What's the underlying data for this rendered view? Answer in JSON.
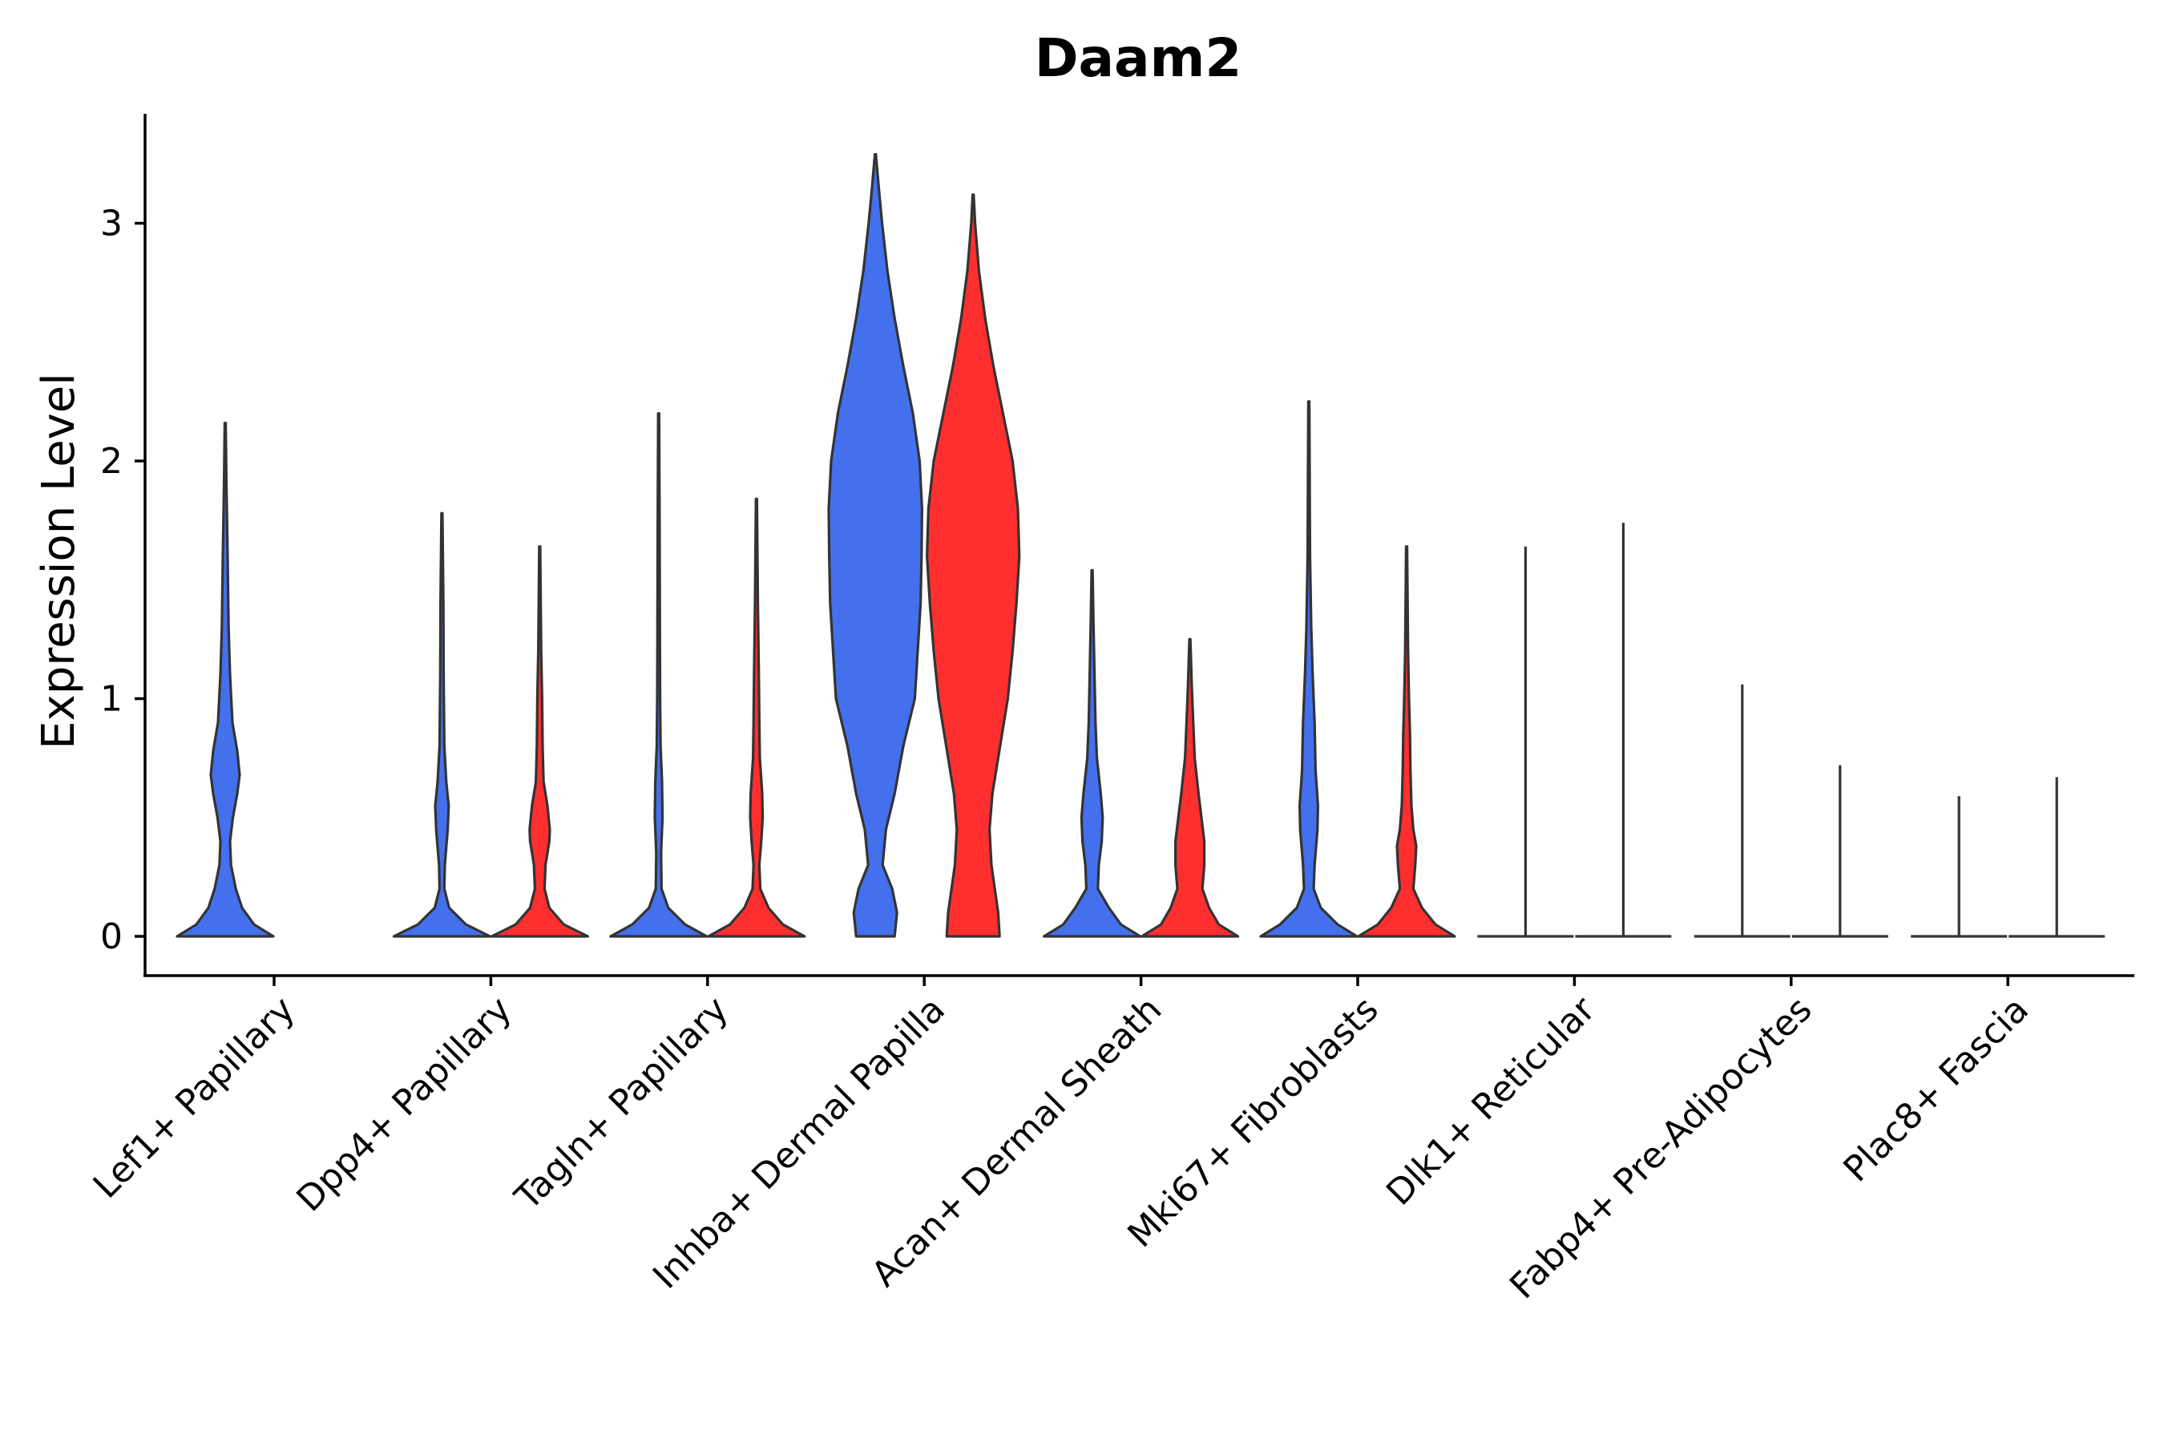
{
  "chart_data": {
    "type": "violin",
    "title": "Daam2",
    "xlabel": "",
    "ylabel": "Expression Level",
    "ylim": [
      -0.16,
      3.45
    ],
    "yticks": [
      0,
      1,
      2,
      3
    ],
    "colors": {
      "group_a": "#4470EE",
      "group_b": "#FF2F2F"
    },
    "categories": [
      "Lef1+ Papillary",
      "Dpp4+ Papillary",
      "Tagln+ Papillary",
      "Inhba+ Dermal Papilla",
      "Acan+ Dermal Sheath",
      "Mki67+ Fibroblasts",
      "Dlk1+ Reticular",
      "Fabp4+ Pre-Adipocytes",
      "Plac8+ Fascia"
    ],
    "violins": [
      {
        "category": 0,
        "group": "a",
        "max": 2.16,
        "profile": [
          [
            0,
            1
          ],
          [
            0.05,
            0.6
          ],
          [
            0.12,
            0.35
          ],
          [
            0.2,
            0.22
          ],
          [
            0.3,
            0.12
          ],
          [
            0.4,
            0.1
          ],
          [
            0.5,
            0.16
          ],
          [
            0.6,
            0.25
          ],
          [
            0.68,
            0.3
          ],
          [
            0.78,
            0.25
          ],
          [
            0.9,
            0.15
          ],
          [
            1.1,
            0.1
          ],
          [
            1.3,
            0.07
          ],
          [
            1.6,
            0.05
          ],
          [
            1.9,
            0.025
          ],
          [
            2.16,
            0.01
          ]
        ]
      },
      {
        "category": 1,
        "group": "a",
        "max": 1.78,
        "profile": [
          [
            0,
            1
          ],
          [
            0.05,
            0.5
          ],
          [
            0.12,
            0.15
          ],
          [
            0.2,
            0.05
          ],
          [
            0.3,
            0.06
          ],
          [
            0.45,
            0.12
          ],
          [
            0.55,
            0.14
          ],
          [
            0.65,
            0.09
          ],
          [
            0.8,
            0.05
          ],
          [
            1.1,
            0.035
          ],
          [
            1.4,
            0.03
          ],
          [
            1.78,
            0.01
          ]
        ]
      },
      {
        "category": 1,
        "group": "b",
        "max": 1.64,
        "profile": [
          [
            0,
            1
          ],
          [
            0.05,
            0.5
          ],
          [
            0.12,
            0.2
          ],
          [
            0.2,
            0.1
          ],
          [
            0.3,
            0.12
          ],
          [
            0.4,
            0.2
          ],
          [
            0.45,
            0.21
          ],
          [
            0.55,
            0.16
          ],
          [
            0.65,
            0.08
          ],
          [
            0.8,
            0.06
          ],
          [
            1.0,
            0.05
          ],
          [
            1.2,
            0.03
          ],
          [
            1.64,
            0.01
          ]
        ]
      },
      {
        "category": 2,
        "group": "a",
        "max": 2.2,
        "profile": [
          [
            0,
            1
          ],
          [
            0.05,
            0.55
          ],
          [
            0.12,
            0.2
          ],
          [
            0.2,
            0.06
          ],
          [
            0.35,
            0.05
          ],
          [
            0.5,
            0.08
          ],
          [
            0.65,
            0.07
          ],
          [
            0.8,
            0.04
          ],
          [
            1.0,
            0.03
          ],
          [
            1.3,
            0.025
          ],
          [
            1.7,
            0.02
          ],
          [
            2.2,
            0.01
          ]
        ]
      },
      {
        "category": 2,
        "group": "b",
        "max": 1.84,
        "profile": [
          [
            0,
            1
          ],
          [
            0.05,
            0.55
          ],
          [
            0.12,
            0.25
          ],
          [
            0.2,
            0.08
          ],
          [
            0.3,
            0.06
          ],
          [
            0.4,
            0.1
          ],
          [
            0.5,
            0.13
          ],
          [
            0.6,
            0.12
          ],
          [
            0.75,
            0.07
          ],
          [
            0.9,
            0.06
          ],
          [
            1.1,
            0.05
          ],
          [
            1.4,
            0.03
          ],
          [
            1.84,
            0.01
          ]
        ]
      },
      {
        "category": 3,
        "group": "a",
        "max": 3.29,
        "profile": [
          [
            0,
            0.4
          ],
          [
            0.1,
            0.45
          ],
          [
            0.2,
            0.35
          ],
          [
            0.3,
            0.15
          ],
          [
            0.45,
            0.22
          ],
          [
            0.6,
            0.4
          ],
          [
            0.8,
            0.58
          ],
          [
            1.0,
            0.82
          ],
          [
            1.2,
            0.88
          ],
          [
            1.4,
            0.94
          ],
          [
            1.6,
            0.96
          ],
          [
            1.8,
            0.97
          ],
          [
            2.0,
            0.92
          ],
          [
            2.2,
            0.78
          ],
          [
            2.4,
            0.58
          ],
          [
            2.6,
            0.4
          ],
          [
            2.8,
            0.25
          ],
          [
            3.0,
            0.14
          ],
          [
            3.15,
            0.07
          ],
          [
            3.29,
            0.01
          ]
        ]
      },
      {
        "category": 3,
        "group": "b",
        "max": 3.12,
        "profile": [
          [
            0,
            0.55
          ],
          [
            0.1,
            0.52
          ],
          [
            0.2,
            0.45
          ],
          [
            0.3,
            0.38
          ],
          [
            0.45,
            0.34
          ],
          [
            0.6,
            0.4
          ],
          [
            0.8,
            0.56
          ],
          [
            1.0,
            0.72
          ],
          [
            1.2,
            0.82
          ],
          [
            1.4,
            0.9
          ],
          [
            1.6,
            0.96
          ],
          [
            1.8,
            0.93
          ],
          [
            2.0,
            0.82
          ],
          [
            2.2,
            0.62
          ],
          [
            2.4,
            0.42
          ],
          [
            2.6,
            0.25
          ],
          [
            2.8,
            0.12
          ],
          [
            3.0,
            0.04
          ],
          [
            3.12,
            0.01
          ]
        ]
      },
      {
        "category": 4,
        "group": "a",
        "max": 1.54,
        "profile": [
          [
            0,
            1
          ],
          [
            0.05,
            0.6
          ],
          [
            0.12,
            0.35
          ],
          [
            0.2,
            0.12
          ],
          [
            0.3,
            0.14
          ],
          [
            0.4,
            0.2
          ],
          [
            0.5,
            0.22
          ],
          [
            0.6,
            0.18
          ],
          [
            0.75,
            0.1
          ],
          [
            0.9,
            0.07
          ],
          [
            1.1,
            0.05
          ],
          [
            1.3,
            0.03
          ],
          [
            1.54,
            0.01
          ]
        ]
      },
      {
        "category": 4,
        "group": "b",
        "max": 1.25,
        "profile": [
          [
            0,
            1
          ],
          [
            0.05,
            0.6
          ],
          [
            0.12,
            0.4
          ],
          [
            0.2,
            0.26
          ],
          [
            0.3,
            0.3
          ],
          [
            0.4,
            0.3
          ],
          [
            0.5,
            0.24
          ],
          [
            0.6,
            0.18
          ],
          [
            0.75,
            0.1
          ],
          [
            0.9,
            0.07
          ],
          [
            1.05,
            0.04
          ],
          [
            1.25,
            0.01
          ]
        ]
      },
      {
        "category": 5,
        "group": "a",
        "max": 2.25,
        "profile": [
          [
            0,
            1
          ],
          [
            0.05,
            0.6
          ],
          [
            0.12,
            0.25
          ],
          [
            0.2,
            0.1
          ],
          [
            0.3,
            0.12
          ],
          [
            0.45,
            0.18
          ],
          [
            0.55,
            0.19
          ],
          [
            0.7,
            0.14
          ],
          [
            0.9,
            0.12
          ],
          [
            1.1,
            0.08
          ],
          [
            1.3,
            0.05
          ],
          [
            1.6,
            0.025
          ],
          [
            2.25,
            0.01
          ]
        ]
      },
      {
        "category": 5,
        "group": "b",
        "max": 1.64,
        "profile": [
          [
            0,
            1
          ],
          [
            0.05,
            0.6
          ],
          [
            0.12,
            0.32
          ],
          [
            0.2,
            0.14
          ],
          [
            0.3,
            0.18
          ],
          [
            0.38,
            0.2
          ],
          [
            0.45,
            0.14
          ],
          [
            0.55,
            0.1
          ],
          [
            0.7,
            0.08
          ],
          [
            0.85,
            0.07
          ],
          [
            1.0,
            0.05
          ],
          [
            1.2,
            0.03
          ],
          [
            1.64,
            0.01
          ]
        ]
      },
      {
        "category": 6,
        "group": "a",
        "max": 1.64,
        "profile": []
      },
      {
        "category": 6,
        "group": "b",
        "max": 1.74,
        "profile": []
      },
      {
        "category": 7,
        "group": "a",
        "max": 1.06,
        "profile": []
      },
      {
        "category": 7,
        "group": "b",
        "max": 0.72,
        "profile": []
      },
      {
        "category": 8,
        "group": "a",
        "max": 0.59,
        "profile": []
      },
      {
        "category": 8,
        "group": "b",
        "max": 0.67,
        "profile": []
      }
    ]
  }
}
